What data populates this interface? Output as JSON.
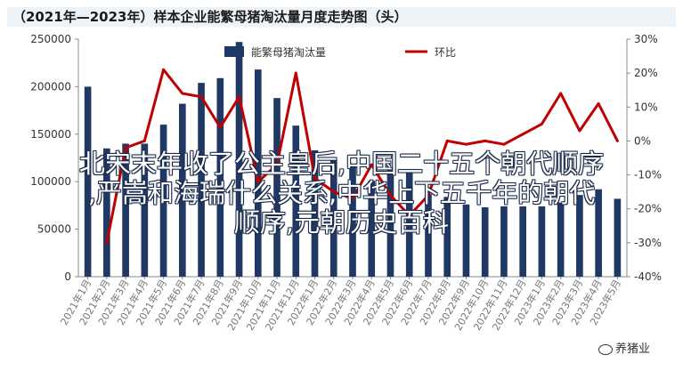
{
  "title": "（2021年—2023年）样本企业能繁母猪淘汰量月度走势图（头）",
  "overlay": {
    "line1": "北宋末年收了公主皇后,中国二十五个朝代顺序",
    "line2": ",严嵩和海瑞什么关系,中华上下五千年的朝代",
    "line3": "顺序,元朝历史百科"
  },
  "watermark": "养猪业",
  "chart_data": {
    "type": "bar",
    "title": "（2021年—2023年）样本企业能繁母猪淘汰量月度走势图（头）",
    "categories": [
      "2021年1月",
      "2021年2月",
      "2021年3月",
      "2021年4月",
      "2021年5月",
      "2021年6月",
      "2021年7月",
      "2021年8月",
      "2021年9月",
      "2021年10月",
      "2021年11月",
      "2021年12月",
      "2022年1月",
      "2022年2月",
      "2022年3月",
      "2022年4月",
      "2022年5月",
      "2022年6月",
      "2022年7月",
      "2022年8月",
      "2022年9月",
      "2022年10月",
      "2022年11月",
      "2022年12月",
      "2023年1月",
      "2023年2月",
      "2023年3月",
      "2023年4月",
      "2023年5月"
    ],
    "series": [
      {
        "name": "能繁母猪淘汰量",
        "type": "bar",
        "axis": "left",
        "color": "#1f3864",
        "values": [
          200000,
          135000,
          140000,
          140000,
          160000,
          182000,
          204000,
          209000,
          247000,
          218000,
          188000,
          159000,
          133000,
          123000,
          117000,
          101000,
          112000,
          112000,
          87000,
          84000,
          76000,
          73000,
          74000,
          74000,
          74000,
          78000,
          86000,
          92000,
          82000
        ]
      },
      {
        "name": "环比",
        "type": "line",
        "axis": "right",
        "color": "#c00000",
        "values": [
          null,
          -30,
          -2,
          0,
          21,
          14,
          13,
          4,
          13,
          -12,
          -7,
          20,
          -11,
          -15,
          -17,
          -7,
          -16,
          -22,
          -16,
          0,
          -1,
          0,
          -1,
          2,
          5,
          14,
          3,
          11,
          0
        ]
      }
    ],
    "ylim_left": [
      0,
      250000
    ],
    "yticks_left": [
      0,
      50000,
      100000,
      150000,
      200000,
      250000
    ],
    "ylim_right": [
      -40,
      30
    ],
    "yticks_right": [
      -40,
      -30,
      -20,
      -10,
      0,
      10,
      20,
      30
    ],
    "right_tick_format": "percent",
    "legend": "top-center",
    "grid": false
  }
}
